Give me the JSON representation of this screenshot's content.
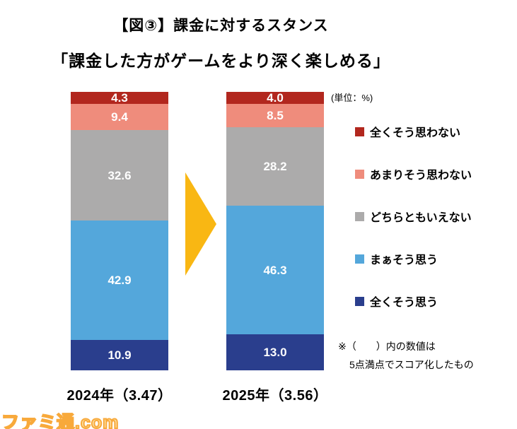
{
  "title": {
    "line1": "【図③】課金に対するスタンス",
    "line2": "「課金した方がゲームをより深く楽しめる」"
  },
  "unit_label": "(単位：%)",
  "chart_data": {
    "type": "bar",
    "subtype": "stacked-vertical-percent",
    "unit": "%",
    "categories": [
      "2024年（3.47）",
      "2025年（3.56）"
    ],
    "scores": [
      3.47,
      3.56
    ],
    "series": [
      {
        "name": "全くそう思わない",
        "color": "#b2271e",
        "values": [
          "4.3",
          "4.0"
        ]
      },
      {
        "name": "あまりそう思わない",
        "color": "#ef8c7c",
        "values": [
          "9.4",
          "8.5"
        ]
      },
      {
        "name": "どちらともいえない",
        "color": "#acabab",
        "values": [
          "32.6",
          "28.2"
        ]
      },
      {
        "name": "まぁそう思う",
        "color": "#54a7db",
        "values": [
          "42.9",
          "46.3"
        ]
      },
      {
        "name": "全くそう思う",
        "color": "#2a3e8d",
        "values": [
          "10.9",
          "13.0"
        ]
      }
    ],
    "legend_position": "right",
    "ylim": [
      0,
      100
    ],
    "grid": false,
    "note": [
      "※（　　）内の数値は",
      "5点満点でスコア化したもの"
    ]
  },
  "arrow": {
    "direction": "right",
    "color": "#f9b713"
  },
  "watermark": {
    "text": "ファミ通.com",
    "color": "#f8a93b"
  }
}
